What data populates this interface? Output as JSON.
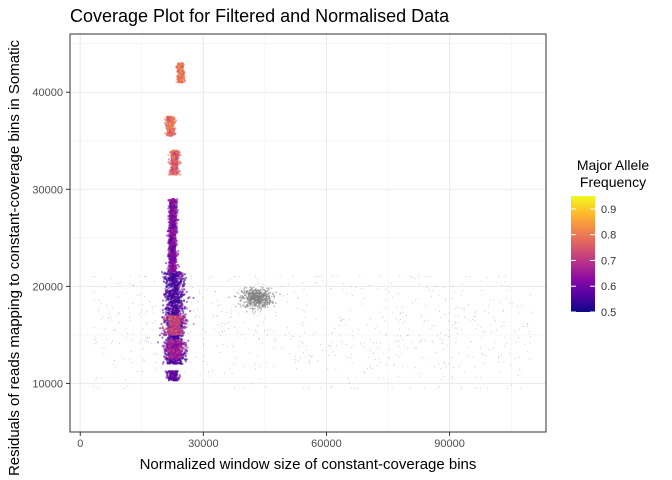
{
  "chart_data": {
    "type": "scatter",
    "title": "Coverage Plot for Filtered and Normalised Data",
    "xlabel": "Normalized window size of constant-coverage bins",
    "ylabel": "Residuals of reads mapping to constant-coverage bins in Somatic",
    "xlim": [
      -2500,
      113500
    ],
    "ylim": [
      5000,
      46000
    ],
    "x_ticks": [
      0,
      30000,
      60000,
      90000
    ],
    "x_tick_labels": [
      "0",
      "30000",
      "60000",
      "90000"
    ],
    "y_ticks": [
      10000,
      20000,
      30000,
      40000
    ],
    "y_tick_labels": [
      "10000",
      "20000",
      "30000",
      "40000"
    ],
    "grid": true,
    "legend": {
      "title_line1": "Major Allele",
      "title_line2": "Frequency",
      "placement": "right",
      "range": [
        0.5,
        0.95
      ],
      "ticks": [
        0.5,
        0.6,
        0.7,
        0.8,
        0.9
      ],
      "tick_labels": [
        "0.5",
        "0.6",
        "0.7",
        "0.8",
        "0.9"
      ],
      "colormap": [
        "#0d0887",
        "#5302a3",
        "#8b0aa5",
        "#b83289",
        "#db5c68",
        "#f48849",
        "#febd2a",
        "#f0f921"
      ]
    },
    "na_color": "#808080",
    "series": [
      {
        "clusters": [
          {
            "x_center": 23000,
            "x_spread": 2000,
            "y_range": [
              12000,
              21500
            ],
            "maf": 0.56
          },
          {
            "x_center": 23000,
            "x_spread": 1800,
            "y_range": [
              15000,
              17000
            ],
            "maf": 0.72
          },
          {
            "x_center": 23000,
            "x_spread": 1800,
            "y_range": [
              12500,
              14500
            ],
            "maf": 0.66
          },
          {
            "x_center": 22500,
            "x_spread": 1200,
            "y_range": [
              10300,
              11300
            ],
            "maf": 0.58
          },
          {
            "x_center": 22500,
            "x_spread": 800,
            "y_range": [
              21500,
              29000
            ],
            "maf": 0.62
          },
          {
            "x_center": 23000,
            "x_spread": 900,
            "y_range": [
              31500,
              34000
            ],
            "maf": 0.76
          },
          {
            "x_center": 22000,
            "x_spread": 800,
            "y_range": [
              35500,
              37500
            ],
            "maf": 0.78
          },
          {
            "x_center": 24500,
            "x_spread": 700,
            "y_range": [
              41000,
              43000
            ],
            "maf": 0.8
          }
        ],
        "gray_cluster": {
          "x_center": 43000,
          "x_spread": 1800,
          "y_center": 18800,
          "y_spread": 500
        },
        "gray_background": {
          "x_range": [
            3000,
            110000
          ],
          "y_range": [
            9500,
            21000
          ]
        }
      }
    ]
  }
}
